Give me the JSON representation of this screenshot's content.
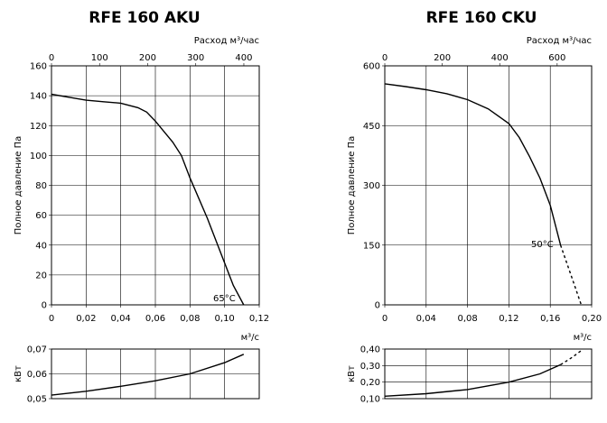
{
  "chart_data": [
    {
      "id": "aku-pressure",
      "type": "line",
      "title": "RFE 160 AKU",
      "ylabel": "Полное давление Па",
      "xlabel": "м³/с",
      "x2label": "Расход м³/час",
      "xlim": [
        0,
        0.12
      ],
      "ylim": [
        0,
        160
      ],
      "x2lim": [
        0,
        432
      ],
      "xticks": [
        "0",
        "0,02",
        "0,04",
        "0,06",
        "0,08",
        "0,10",
        "0,12"
      ],
      "yticks": [
        "0",
        "20",
        "40",
        "60",
        "80",
        "100",
        "120",
        "140",
        "160"
      ],
      "x2ticks": [
        "0",
        "100",
        "200",
        "300",
        "400"
      ],
      "annotation": "65°C",
      "series": [
        {
          "x": [
            0,
            0.01,
            0.02,
            0.03,
            0.04,
            0.05,
            0.055,
            0.06,
            0.065,
            0.07,
            0.075,
            0.08,
            0.09,
            0.1,
            0.105,
            0.111
          ],
          "y": [
            141,
            139,
            137,
            136,
            135,
            132,
            129,
            123,
            116,
            109,
            100,
            85,
            58,
            28,
            13,
            0
          ]
        }
      ]
    },
    {
      "id": "aku-power",
      "type": "line",
      "ylabel": "кВт",
      "xlim": [
        0,
        0.12
      ],
      "ylim": [
        0.05,
        0.07
      ],
      "yticks": [
        "0,05",
        "0,06",
        "0,07"
      ],
      "series": [
        {
          "x": [
            0,
            0.02,
            0.04,
            0.06,
            0.08,
            0.1,
            0.111
          ],
          "y": [
            0.0514,
            0.053,
            0.055,
            0.0572,
            0.06,
            0.0645,
            0.0679
          ]
        }
      ]
    },
    {
      "id": "cku-pressure",
      "type": "line",
      "title": "RFE 160 CKU",
      "ylabel": "Полное давление Па",
      "xlabel": "м³/с",
      "x2label": "Расход м³/час",
      "xlim": [
        0,
        0.2
      ],
      "ylim": [
        0,
        600
      ],
      "x2lim": [
        0,
        720
      ],
      "xticks": [
        "0",
        "0,04",
        "0,08",
        "0,12",
        "0,16",
        "0,20"
      ],
      "yticks": [
        "0",
        "150",
        "300",
        "450",
        "600"
      ],
      "x2ticks": [
        "0",
        "200",
        "400",
        "600"
      ],
      "annotation": "50°C",
      "series": [
        {
          "x": [
            0,
            0.02,
            0.04,
            0.06,
            0.08,
            0.1,
            0.12,
            0.13,
            0.14,
            0.15,
            0.16,
            0.165,
            0.17
          ],
          "y": [
            555,
            548,
            540,
            530,
            515,
            492,
            455,
            420,
            372,
            318,
            250,
            200,
            150
          ],
          "style": "solid"
        },
        {
          "x": [
            0.17,
            0.18,
            0.19
          ],
          "y": [
            150,
            75,
            0
          ],
          "style": "dashed"
        }
      ]
    },
    {
      "id": "cku-power",
      "type": "line",
      "ylabel": "кВт",
      "xlim": [
        0,
        0.2
      ],
      "ylim": [
        0.1,
        0.4
      ],
      "yticks": [
        "0,10",
        "0,20",
        "0,30",
        "0,40"
      ],
      "series": [
        {
          "x": [
            0,
            0.04,
            0.08,
            0.12,
            0.15,
            0.17
          ],
          "y": [
            0.115,
            0.13,
            0.155,
            0.2,
            0.25,
            0.305
          ],
          "style": "solid"
        },
        {
          "x": [
            0.17,
            0.18,
            0.19
          ],
          "y": [
            0.305,
            0.345,
            0.39
          ],
          "style": "dashed"
        }
      ]
    }
  ]
}
